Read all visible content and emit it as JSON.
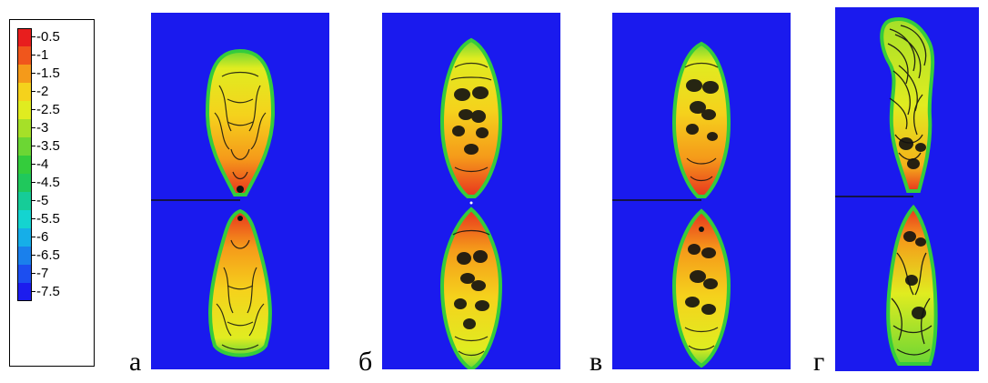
{
  "colorbar": {
    "entries": [
      {
        "label": "-0.5",
        "color": "#e81e1e"
      },
      {
        "label": "-1",
        "color": "#f0561c"
      },
      {
        "label": "-1.5",
        "color": "#f59a1a"
      },
      {
        "label": "-2",
        "color": "#f5d21c"
      },
      {
        "label": "-2.5",
        "color": "#e0ec20"
      },
      {
        "label": "-3",
        "color": "#a6e028"
      },
      {
        "label": "-3.5",
        "color": "#6cd634"
      },
      {
        "label": "-4",
        "color": "#34cc3c"
      },
      {
        "label": "-4.5",
        "color": "#20c85c"
      },
      {
        "label": "-5",
        "color": "#16cc98"
      },
      {
        "label": "-5.5",
        "color": "#14d4d0"
      },
      {
        "label": "-6",
        "color": "#16aee8"
      },
      {
        "label": "-6.5",
        "color": "#1a80ec"
      },
      {
        "label": "-7",
        "color": "#1c4ef0"
      },
      {
        "label": "-7.5",
        "color": "#1c1cee"
      }
    ]
  },
  "panels": [
    {
      "label": "а"
    },
    {
      "label": "б"
    },
    {
      "label": "в"
    },
    {
      "label": "г"
    }
  ]
}
